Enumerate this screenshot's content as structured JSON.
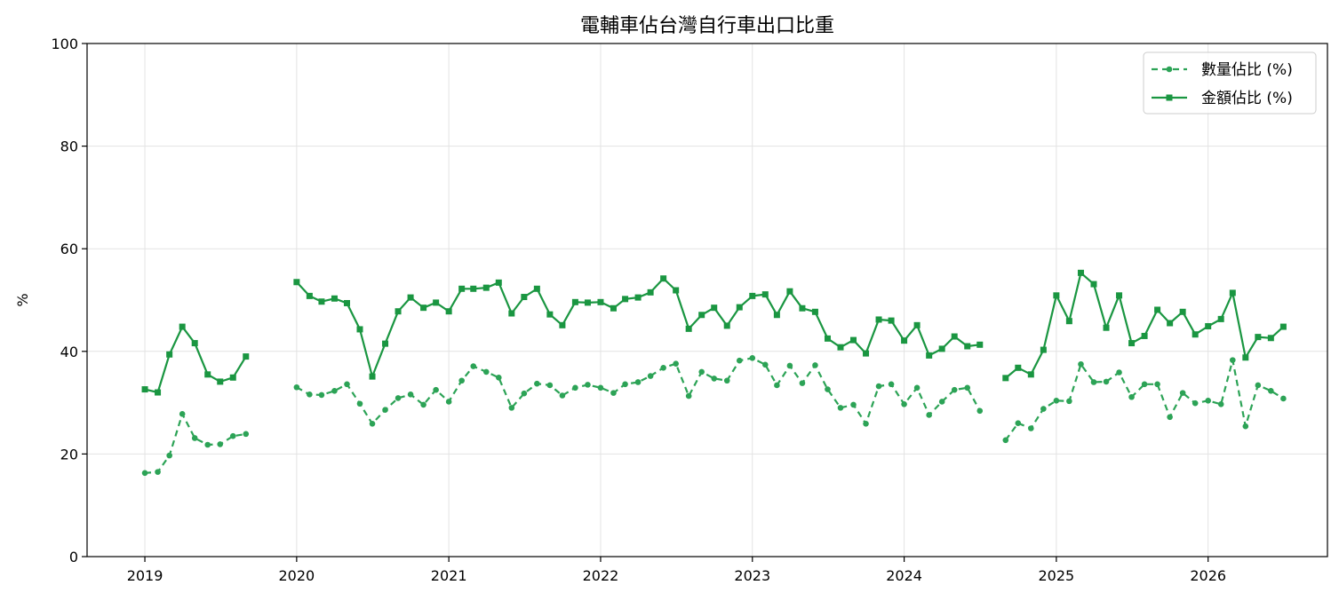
{
  "chart_data": {
    "type": "line",
    "title": "電輔車佔台灣自行車出口比重",
    "xlabel": "",
    "ylabel": "%",
    "ylim": [
      0,
      100
    ],
    "xlim": [
      "2018-08-15",
      "2026-10-15"
    ],
    "yticks": [
      0,
      20,
      40,
      60,
      80,
      100
    ],
    "xticks": [
      "2019",
      "2020",
      "2021",
      "2022",
      "2023",
      "2024",
      "2025",
      "2026"
    ],
    "grid": true,
    "legend_position": "top-right",
    "colors": {
      "count": "#2ca356",
      "value": "#1a9641"
    },
    "series": [
      {
        "name": "數量佔比 (%)",
        "style": "dashed-circle",
        "segments": [
          {
            "x": [
              "2019-01",
              "2019-02",
              "2019-03",
              "2019-04",
              "2019-05",
              "2019-06",
              "2019-07",
              "2019-08",
              "2019-09"
            ],
            "y": [
              16.3,
              16.5,
              19.7,
              27.8,
              23.1,
              21.8,
              21.9,
              23.5,
              23.9
            ]
          },
          {
            "x": [
              "2020-01",
              "2020-02",
              "2020-03",
              "2020-04",
              "2020-05",
              "2020-06",
              "2020-07",
              "2020-08",
              "2020-09",
              "2020-10",
              "2020-11",
              "2020-12",
              "2021-01",
              "2021-02",
              "2021-03",
              "2021-04",
              "2021-05",
              "2021-06",
              "2021-07",
              "2021-08",
              "2021-09",
              "2021-10",
              "2021-11",
              "2021-12",
              "2022-01",
              "2022-02",
              "2022-03",
              "2022-04",
              "2022-05",
              "2022-06",
              "2022-07",
              "2022-08",
              "2022-09",
              "2022-10",
              "2022-11",
              "2022-12",
              "2023-01",
              "2023-02",
              "2023-03",
              "2023-04",
              "2023-05",
              "2023-06",
              "2023-07",
              "2023-08",
              "2023-09",
              "2023-10",
              "2023-11",
              "2023-12",
              "2024-01",
              "2024-02",
              "2024-03",
              "2024-04",
              "2024-05",
              "2024-06",
              "2024-07"
            ],
            "y": [
              33.0,
              31.6,
              31.5,
              32.3,
              33.6,
              29.8,
              25.9,
              28.6,
              30.9,
              31.6,
              29.6,
              32.5,
              30.2,
              34.3,
              37.1,
              36.0,
              34.9,
              29.0,
              31.8,
              33.7,
              33.4,
              31.4,
              32.9,
              33.5,
              32.9,
              31.9,
              33.6,
              34.0,
              35.2,
              36.8,
              37.6,
              31.3,
              36.0,
              34.7,
              34.3,
              38.2,
              38.7,
              37.4,
              33.4,
              37.2,
              33.8,
              37.3,
              32.6,
              29.0,
              29.6,
              25.9,
              33.2,
              33.6,
              29.7,
              32.9,
              27.6,
              30.2,
              32.5,
              32.9,
              28.4
            ]
          },
          {
            "x": [
              "2024-09",
              "2024-10",
              "2024-11",
              "2024-12",
              "2025-01",
              "2025-02",
              "2025-03",
              "2025-04",
              "2025-05",
              "2025-06",
              "2025-07",
              "2025-08",
              "2025-09",
              "2025-10",
              "2025-11",
              "2025-12",
              "2026-01",
              "2026-02",
              "2026-03",
              "2026-04",
              "2026-05",
              "2026-06",
              "2026-07"
            ],
            "y": [
              22.7,
              26.0,
              25.0,
              28.8,
              30.4,
              30.3,
              37.5,
              34.0,
              34.1,
              35.9,
              31.1,
              33.6,
              33.6,
              27.2,
              31.9,
              29.9,
              30.4,
              29.7,
              38.3,
              25.4,
              33.4,
              32.3,
              30.8
            ]
          }
        ]
      },
      {
        "name": "金額佔比 (%)",
        "style": "solid-square",
        "segments": [
          {
            "x": [
              "2019-01",
              "2019-02",
              "2019-03",
              "2019-04",
              "2019-05",
              "2019-06",
              "2019-07",
              "2019-08",
              "2019-09"
            ],
            "y": [
              32.6,
              32.0,
              39.4,
              44.8,
              41.6,
              35.5,
              34.1,
              34.9,
              39.0
            ]
          },
          {
            "x": [
              "2020-01",
              "2020-02",
              "2020-03",
              "2020-04",
              "2020-05",
              "2020-06",
              "2020-07",
              "2020-08",
              "2020-09",
              "2020-10",
              "2020-11",
              "2020-12",
              "2021-01",
              "2021-02",
              "2021-03",
              "2021-04",
              "2021-05",
              "2021-06",
              "2021-07",
              "2021-08",
              "2021-09",
              "2021-10",
              "2021-11",
              "2021-12",
              "2022-01",
              "2022-02",
              "2022-03",
              "2022-04",
              "2022-05",
              "2022-06",
              "2022-07",
              "2022-08",
              "2022-09",
              "2022-10",
              "2022-11",
              "2022-12",
              "2023-01",
              "2023-02",
              "2023-03",
              "2023-04",
              "2023-05",
              "2023-06",
              "2023-07",
              "2023-08",
              "2023-09",
              "2023-10",
              "2023-11",
              "2023-12",
              "2024-01",
              "2024-02",
              "2024-03",
              "2024-04",
              "2024-05",
              "2024-06",
              "2024-07"
            ],
            "y": [
              53.5,
              50.8,
              49.7,
              50.3,
              49.4,
              44.3,
              35.1,
              41.5,
              47.8,
              50.5,
              48.5,
              49.5,
              47.8,
              52.2,
              52.2,
              52.4,
              53.4,
              47.4,
              50.6,
              52.2,
              47.2,
              45.1,
              49.6,
              49.5,
              49.6,
              48.4,
              50.2,
              50.5,
              51.5,
              54.2,
              51.9,
              44.4,
              47.1,
              48.5,
              45.0,
              48.6,
              50.8,
              51.1,
              47.1,
              51.7,
              48.4,
              47.7,
              42.5,
              40.8,
              42.2,
              39.6,
              46.2,
              46.0,
              42.1,
              45.1,
              39.2,
              40.5,
              42.9,
              41.0,
              41.3
            ]
          },
          {
            "x": [
              "2024-09",
              "2024-10",
              "2024-11",
              "2024-12",
              "2025-01",
              "2025-02",
              "2025-03",
              "2025-04",
              "2025-05",
              "2025-06",
              "2025-07",
              "2025-08",
              "2025-09",
              "2025-10",
              "2025-11",
              "2025-12",
              "2026-01",
              "2026-02",
              "2026-03",
              "2026-04",
              "2026-05",
              "2026-06",
              "2026-07"
            ],
            "y": [
              34.8,
              36.8,
              35.5,
              40.3,
              50.9,
              45.9,
              55.3,
              53.1,
              44.6,
              50.9,
              41.6,
              43.0,
              48.1,
              45.5,
              47.7,
              43.3,
              44.9,
              46.3,
              51.4,
              38.8,
              42.8,
              42.6,
              44.8
            ]
          }
        ]
      }
    ]
  }
}
